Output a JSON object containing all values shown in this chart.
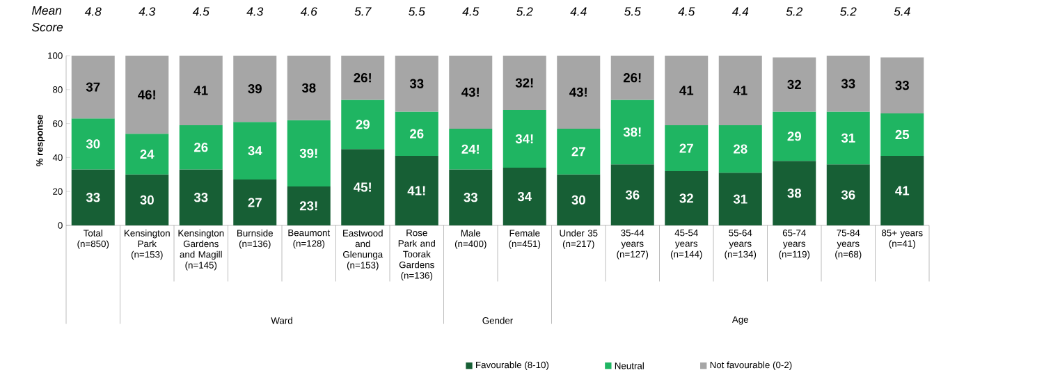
{
  "chart_data": {
    "type": "bar",
    "stacked": true,
    "categories": [
      "Total (n=850)",
      "Kensington Park (n=153)",
      "Kensington Gardens and Magill (n=145)",
      "Burnside (n=136)",
      "Beaumont (n=128)",
      "Eastwood and Glenunga (n=153)",
      "Rose Park and Toorak Gardens (n=136)",
      "Male (n=400)",
      "Female (n=451)",
      "Under 35 (n=217)",
      "35-44 years (n=127)",
      "45-54 years (n=144)",
      "55-64 years (n=134)",
      "65-74 years (n=119)",
      "75-84 years (n=68)",
      "85+ years (n=41)"
    ],
    "series": [
      {
        "name": "Favourable (8-10)",
        "color": "#175f35",
        "values": [
          33,
          30,
          33,
          27,
          23,
          45,
          41,
          33,
          34,
          30,
          36,
          32,
          31,
          38,
          36,
          41
        ],
        "value_labels": [
          "33",
          "30",
          "33",
          "27",
          "23!",
          "45!",
          "41!",
          "33",
          "34",
          "30",
          "36",
          "32",
          "31",
          "38",
          "36",
          "41"
        ]
      },
      {
        "name": "Neutral",
        "color": "#1fb562",
        "values": [
          30,
          24,
          26,
          34,
          39,
          29,
          26,
          24,
          34,
          27,
          38,
          27,
          28,
          29,
          31,
          25
        ],
        "value_labels": [
          "30",
          "24",
          "26",
          "34",
          "39!",
          "29",
          "26",
          "24!",
          "34!",
          "27",
          "38!",
          "27",
          "28",
          "29",
          "31",
          "25"
        ]
      },
      {
        "name": "Not favourable (0-2)",
        "color": "#a6a6a6",
        "values": [
          37,
          46,
          41,
          39,
          38,
          26,
          33,
          43,
          32,
          43,
          26,
          41,
          41,
          32,
          33,
          33
        ],
        "value_labels": [
          "37",
          "46!",
          "41",
          "39",
          "38",
          "26!",
          "33",
          "43!",
          "32!",
          "43!",
          "26!",
          "41",
          "41",
          "32",
          "33",
          "33"
        ]
      }
    ],
    "ylabel": "% response",
    "ylim": [
      0,
      100
    ],
    "yticks": [
      0,
      20,
      40,
      60,
      80,
      100
    ],
    "legend": "bottom",
    "annotations": [
      "Mean Score",
      "4.8",
      "4.3",
      "4.5",
      "4.3",
      "4.6",
      "5.7",
      "5.5",
      "4.5",
      "5.2",
      "4.4",
      "5.5",
      "4.5",
      "4.4",
      "5.2",
      "5.2",
      "5.4",
      "Ward",
      "Gender",
      "Age"
    ]
  }
}
